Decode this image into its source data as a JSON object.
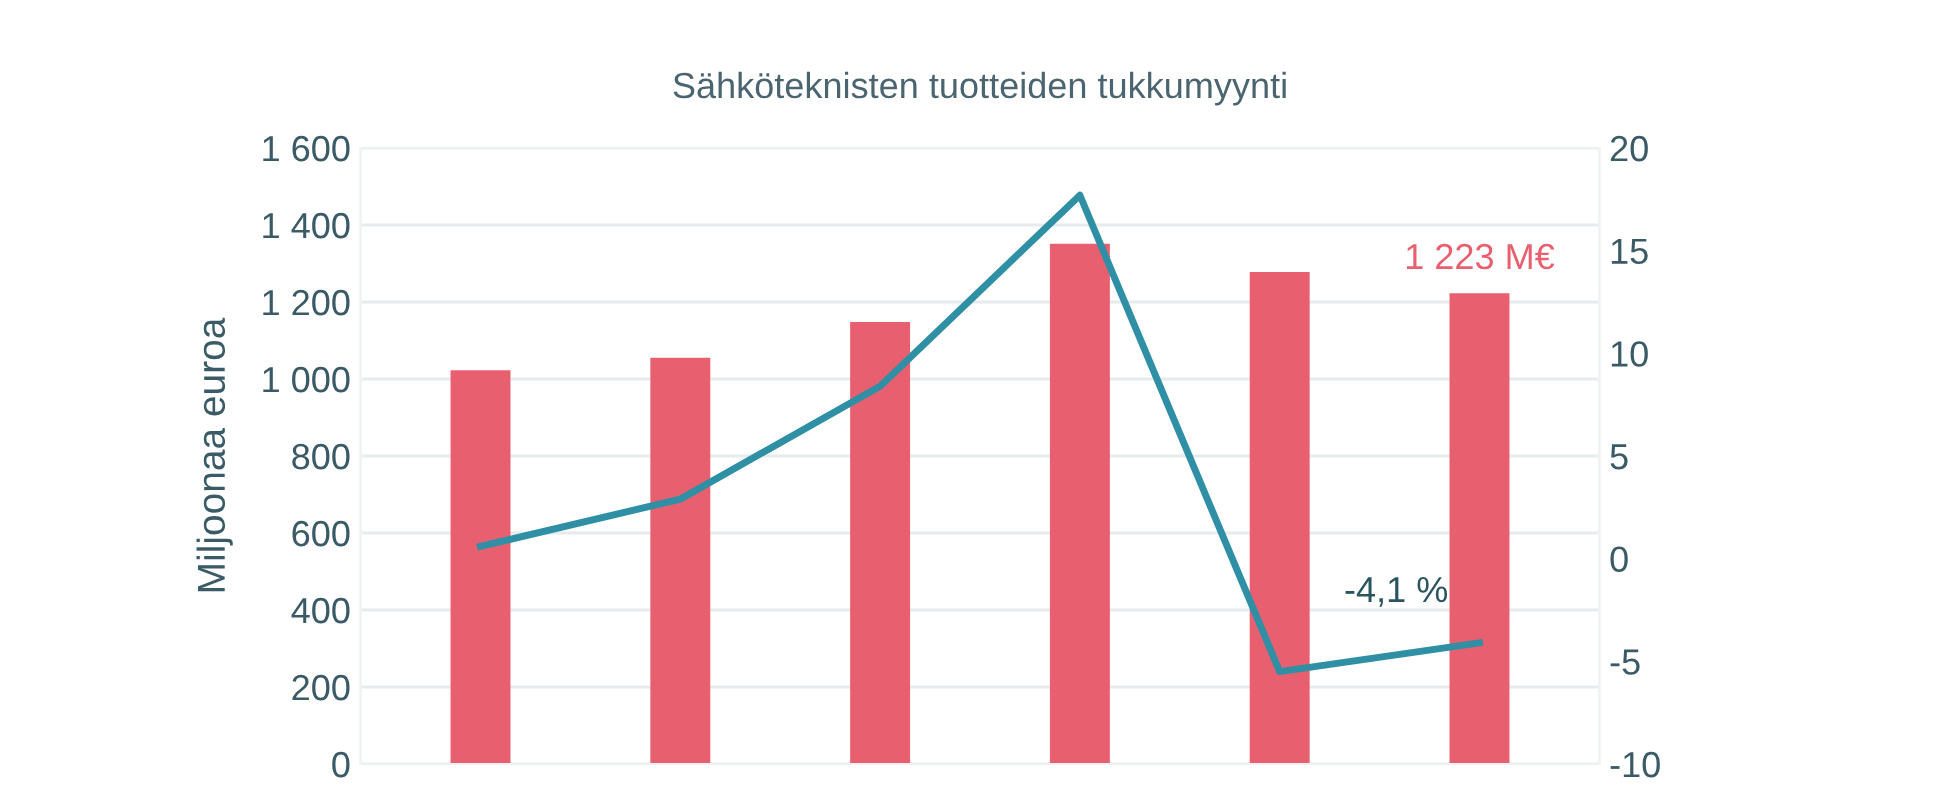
{
  "chart_data": {
    "type": "bar",
    "title": "Sähköteknisten tuotteiden tukkumyynti",
    "ylabel": "Miljoonaa euroa",
    "categories": [
      null,
      null,
      null,
      null,
      null,
      null
    ],
    "series": [
      {
        "color": "#e8606f",
        "values": [
          1023,
          1055,
          1148,
          1351,
          1278,
          1223
        ],
        "value_labels": [
          null,
          null,
          null,
          null,
          null,
          "1 223 M€"
        ]
      },
      {
        "type": "line",
        "axis": "y2",
        "color": "#2e8fa5",
        "values": [
          0.6,
          2.9,
          8.4,
          17.7,
          -5.5,
          -4.1
        ],
        "value_labels": [
          null,
          null,
          null,
          null,
          null,
          "-4,1 %"
        ]
      }
    ],
    "ylim": [
      0,
      1600
    ],
    "yticks": [
      0,
      200,
      400,
      600,
      800,
      {
        "value": 1000,
        "label": "1 000"
      },
      {
        "value": 1200,
        "label": "1 200"
      },
      {
        "value": 1400,
        "label": "1 400"
      },
      {
        "value": 1600,
        "label": "1 600"
      }
    ],
    "y2lim": [
      -10,
      20
    ],
    "y2ticks": [
      {
        "value": -10,
        "label": "-10"
      },
      {
        "value": -5,
        "label": "-5"
      },
      0,
      5,
      10,
      15,
      20
    ],
    "grid": "y",
    "marker": "none",
    "line_style": "solid"
  }
}
